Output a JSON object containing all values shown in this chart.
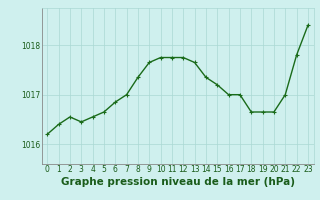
{
  "x": [
    0,
    1,
    2,
    3,
    4,
    5,
    6,
    7,
    8,
    9,
    10,
    11,
    12,
    13,
    14,
    15,
    16,
    17,
    18,
    19,
    20,
    21,
    22,
    23
  ],
  "y": [
    1016.2,
    1016.4,
    1016.55,
    1016.45,
    1016.55,
    1016.65,
    1016.85,
    1017.0,
    1017.35,
    1017.65,
    1017.75,
    1017.75,
    1017.75,
    1017.65,
    1017.35,
    1017.2,
    1017.0,
    1017.0,
    1016.65,
    1016.65,
    1016.65,
    1017.0,
    1017.8,
    1018.4
  ],
  "line_color": "#1a6b1a",
  "marker": "+",
  "markersize": 3.5,
  "linewidth": 1.0,
  "background_color": "#cff0ee",
  "grid_color": "#aad8d4",
  "xlabel": "Graphe pression niveau de la mer (hPa)",
  "xlabel_fontsize": 7.5,
  "xlabel_fontweight": "bold",
  "xlabel_color": "#1a5c1a",
  "tick_color": "#1a5c1a",
  "tick_fontsize": 5.5,
  "ylim": [
    1015.6,
    1018.75
  ],
  "yticks": [
    1016,
    1017,
    1018
  ],
  "xlim": [
    -0.5,
    23.5
  ],
  "xticks": [
    0,
    1,
    2,
    3,
    4,
    5,
    6,
    7,
    8,
    9,
    10,
    11,
    12,
    13,
    14,
    15,
    16,
    17,
    18,
    19,
    20,
    21,
    22,
    23
  ]
}
